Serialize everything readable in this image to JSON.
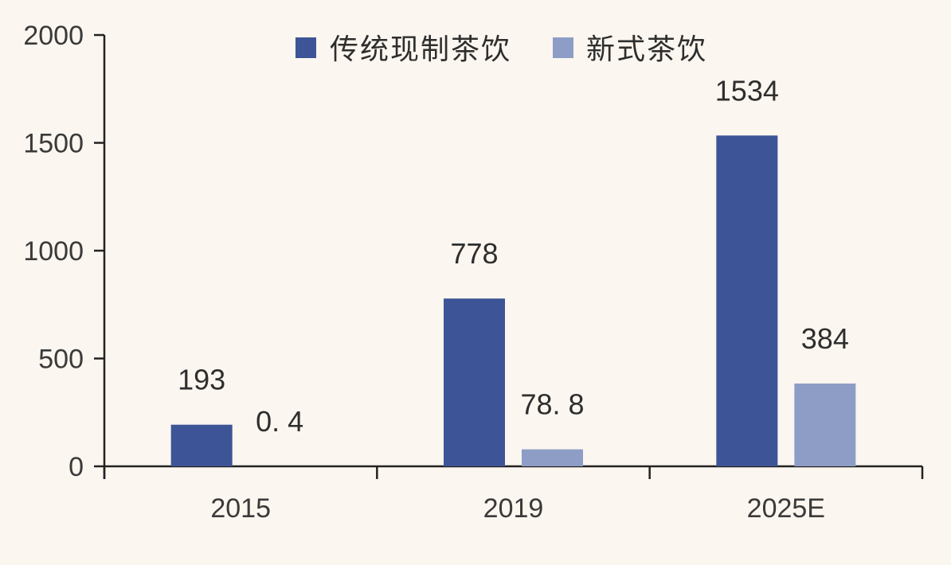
{
  "chart_data": {
    "type": "bar",
    "categories": [
      "2015",
      "2019",
      "2025E"
    ],
    "series": [
      {
        "name": "传统现制茶饮",
        "values": [
          193,
          778,
          1534
        ],
        "labels": [
          "193",
          "778",
          "1534"
        ],
        "color": "#3d5596"
      },
      {
        "name": "新式茶饮",
        "values": [
          0.4,
          78.8,
          384
        ],
        "labels": [
          "0. 4",
          "78. 8",
          "384"
        ],
        "color": "#8e9dc5"
      }
    ],
    "ylim": [
      0,
      2000
    ],
    "yticks": [
      0,
      500,
      1000,
      1500,
      2000
    ],
    "title": "",
    "xlabel": "",
    "ylabel": "",
    "legend_position": "top-right",
    "grid": false,
    "axis_color": "#222222"
  }
}
